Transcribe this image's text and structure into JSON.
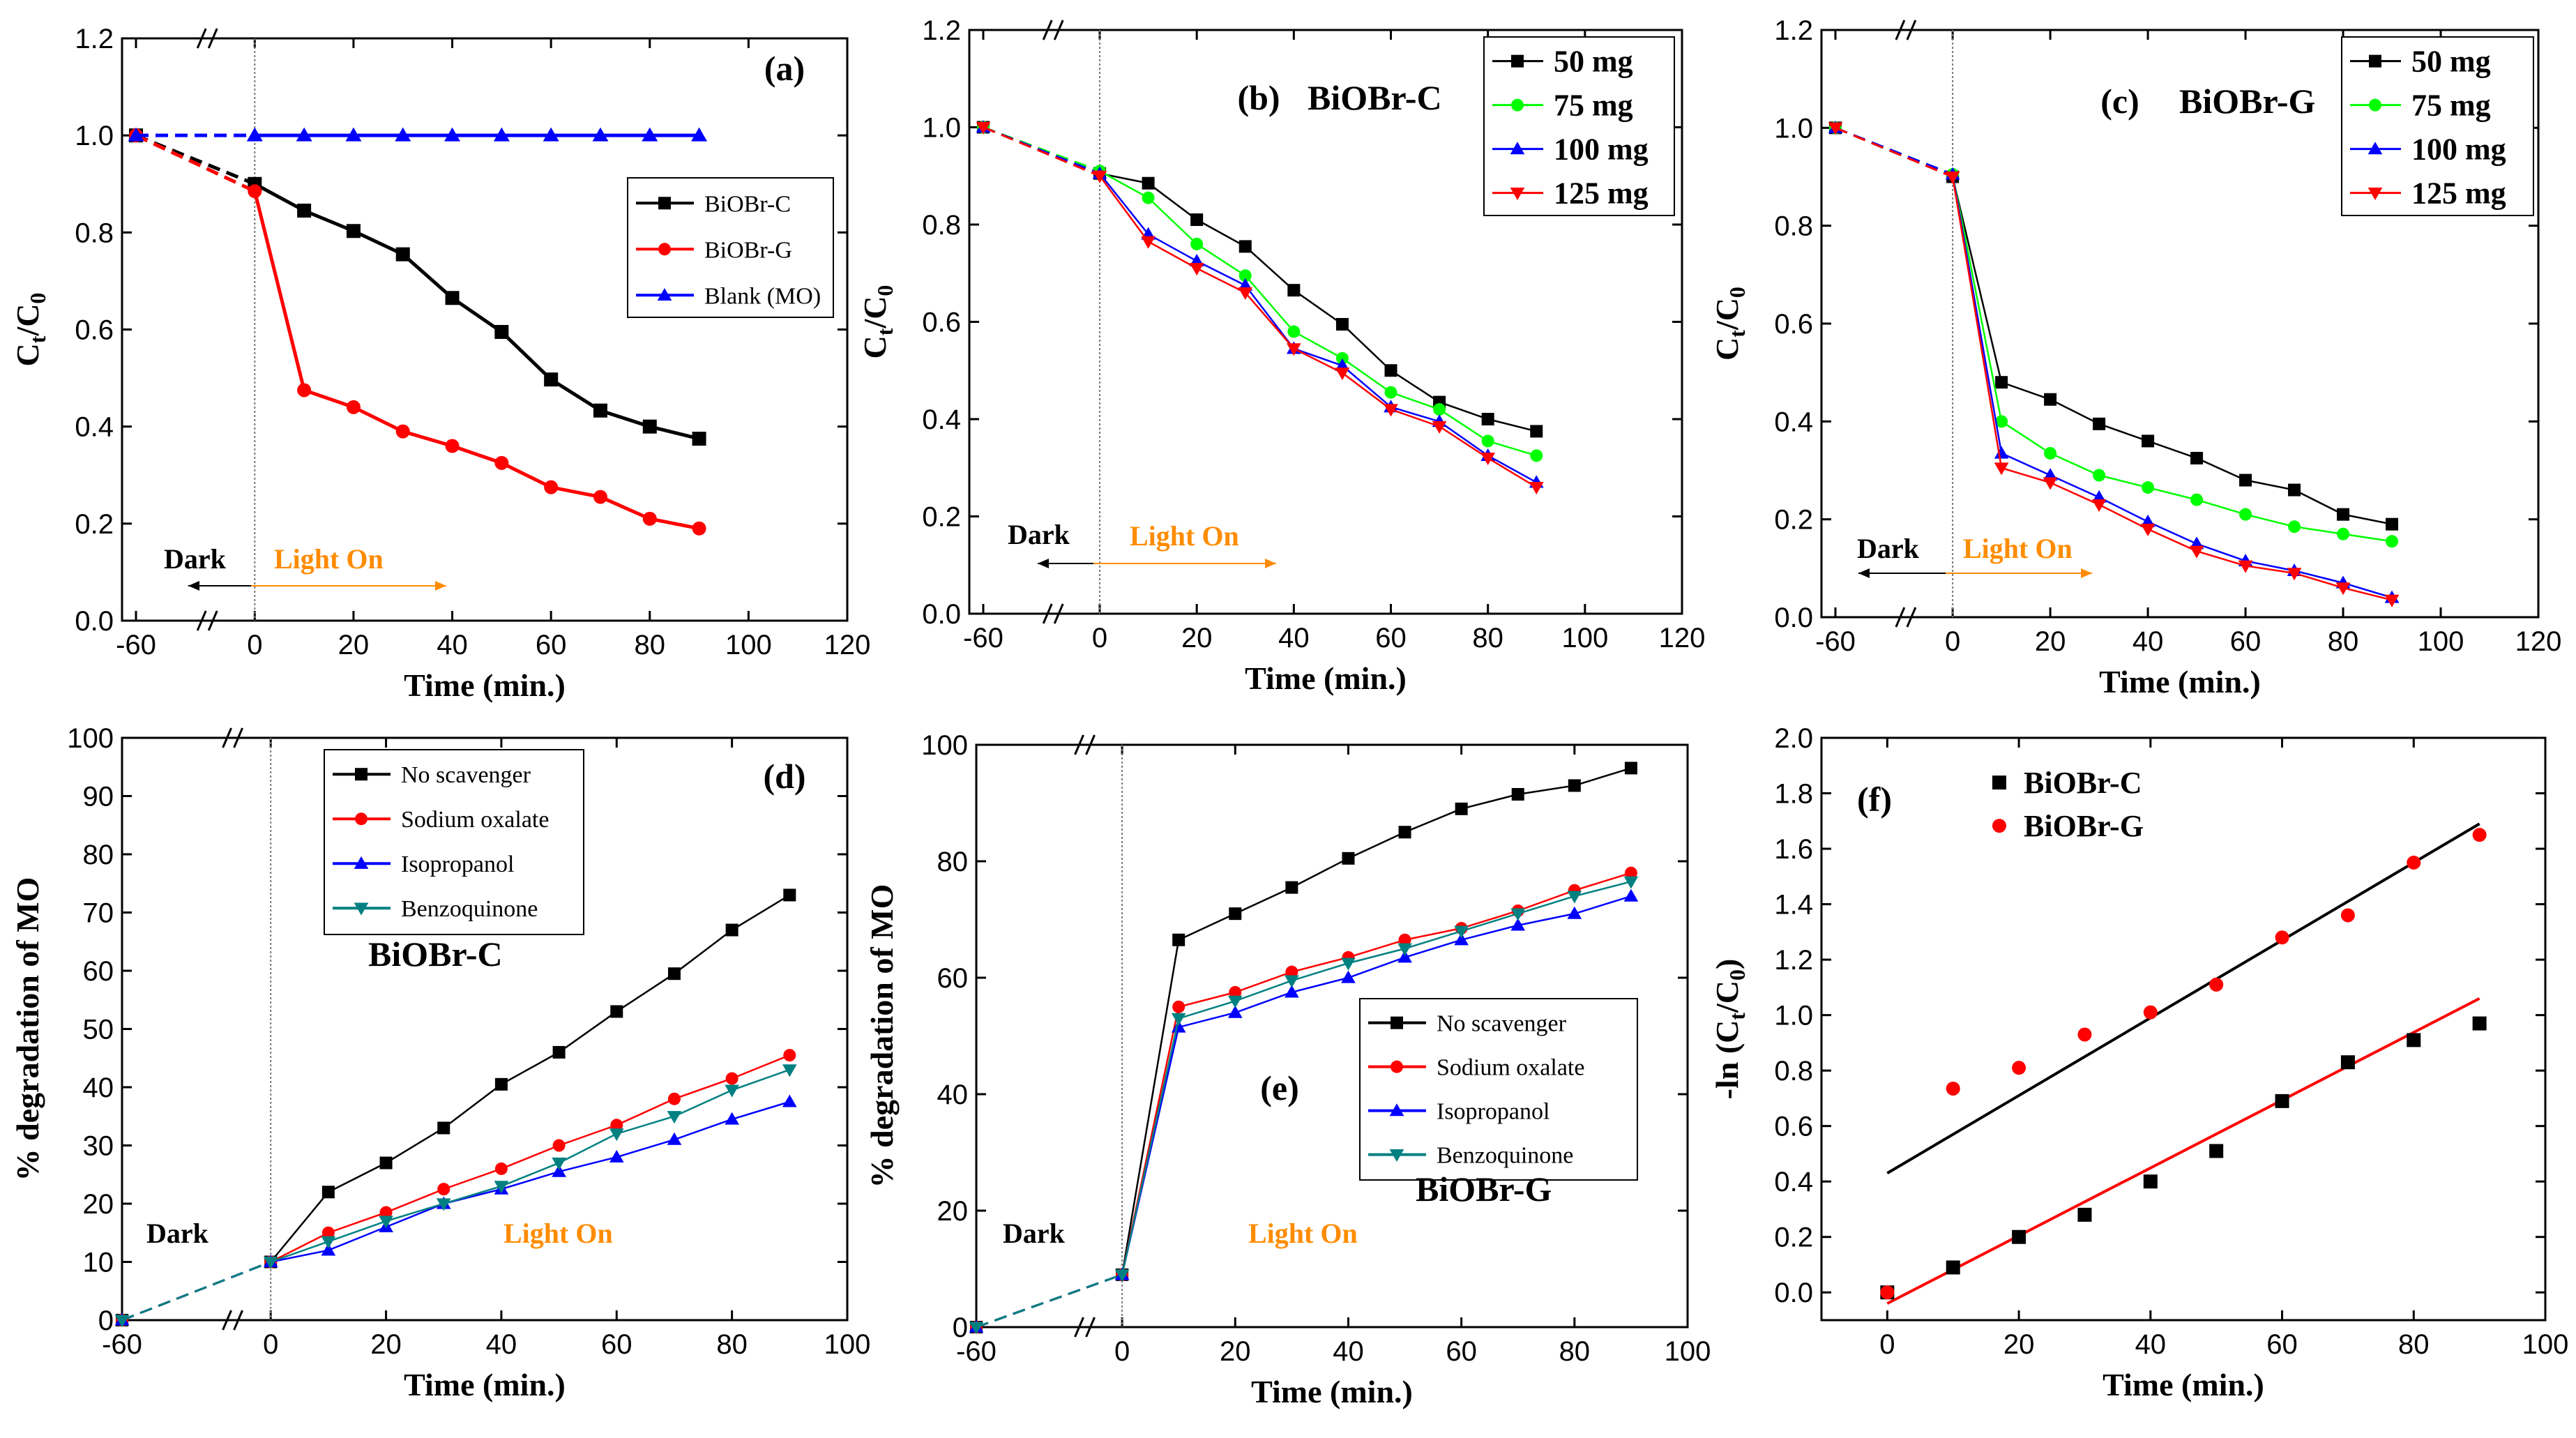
{
  "colors": {
    "black": "#000000",
    "red": "#ff0000",
    "blue": "#0000ff",
    "green": "#00ff00",
    "teal": "#008080",
    "orange": "#ff8c00"
  },
  "chart_data": [
    {
      "id": "a",
      "type": "line",
      "panel_label": "(a)",
      "xlabel": "Time (min.)",
      "ylabel_main": "C",
      "ylabel_sub1": "t",
      "ylabel_mid": "/C",
      "ylabel_sub2": "0",
      "xlim": [
        -60,
        120
      ],
      "ylim": [
        0,
        1.2
      ],
      "xticks": [
        -60,
        0,
        20,
        40,
        60,
        80,
        100,
        120
      ],
      "yticks": [
        0.0,
        0.2,
        0.4,
        0.6,
        0.8,
        1.0,
        1.2
      ],
      "ytick_labels": [
        "0.0",
        "0.2",
        "0.4",
        "0.6",
        "0.8",
        "1.0",
        "1.2"
      ],
      "legend_style": "small",
      "series": [
        {
          "name": "BiOBr-C",
          "color": "black",
          "marker": "square",
          "x": [
            -60,
            0,
            10,
            20,
            30,
            40,
            50,
            60,
            70,
            80,
            90
          ],
          "y": [
            1.0,
            0.9,
            0.845,
            0.803,
            0.755,
            0.665,
            0.595,
            0.497,
            0.433,
            0.4,
            0.375
          ]
        },
        {
          "name": "BiOBr-G",
          "color": "red",
          "marker": "circle",
          "x": [
            -60,
            0,
            10,
            20,
            30,
            40,
            50,
            60,
            70,
            80,
            90
          ],
          "y": [
            1.0,
            0.885,
            0.475,
            0.44,
            0.39,
            0.36,
            0.325,
            0.275,
            0.255,
            0.21,
            0.19
          ]
        },
        {
          "name": "Blank (MO)",
          "color": "blue",
          "marker": "triangle-up",
          "x": [
            -60,
            0,
            10,
            20,
            30,
            40,
            50,
            60,
            70,
            80,
            90
          ],
          "y": [
            1.0,
            1.0,
            1.0,
            1.0,
            1.0,
            1.0,
            1.0,
            1.0,
            1.0,
            1.0,
            1.0
          ]
        }
      ],
      "annotations": {
        "dark": "Dark",
        "light": "Light On"
      }
    },
    {
      "id": "b",
      "type": "line",
      "panel_label": "(b)",
      "title_in_plot": "BiOBr-C",
      "xlabel": "Time (min.)",
      "ylabel_main": "C",
      "ylabel_sub1": "t",
      "ylabel_mid": "/C",
      "ylabel_sub2": "0",
      "xlim": [
        -60,
        120
      ],
      "ylim": [
        0,
        1.2
      ],
      "xticks": [
        -60,
        0,
        20,
        40,
        60,
        80,
        100,
        120
      ],
      "yticks": [
        0.0,
        0.2,
        0.4,
        0.6,
        0.8,
        1.0,
        1.2
      ],
      "ytick_labels": [
        "0.0",
        "0.2",
        "0.4",
        "0.6",
        "0.8",
        "1.0",
        "1.2"
      ],
      "legend_style": "big",
      "series": [
        {
          "name": "50 mg",
          "color": "black",
          "marker": "square",
          "x": [
            -60,
            0,
            10,
            20,
            30,
            40,
            50,
            60,
            70,
            80,
            90
          ],
          "y": [
            1.0,
            0.905,
            0.885,
            0.81,
            0.755,
            0.665,
            0.595,
            0.5,
            0.435,
            0.4,
            0.375
          ]
        },
        {
          "name": "75 mg",
          "color": "green",
          "marker": "circle",
          "x": [
            -60,
            0,
            10,
            20,
            30,
            40,
            50,
            60,
            70,
            80,
            90
          ],
          "y": [
            1.0,
            0.91,
            0.855,
            0.76,
            0.695,
            0.58,
            0.525,
            0.455,
            0.42,
            0.355,
            0.325
          ]
        },
        {
          "name": "100 mg",
          "color": "blue",
          "marker": "triangle-up",
          "x": [
            -60,
            0,
            10,
            20,
            30,
            40,
            50,
            60,
            70,
            80,
            90
          ],
          "y": [
            1.0,
            0.905,
            0.78,
            0.725,
            0.675,
            0.545,
            0.51,
            0.425,
            0.395,
            0.325,
            0.27
          ]
        },
        {
          "name": "125 mg",
          "color": "red",
          "marker": "triangle-down",
          "x": [
            -60,
            0,
            10,
            20,
            30,
            40,
            50,
            60,
            70,
            80,
            90
          ],
          "y": [
            1.0,
            0.9,
            0.765,
            0.71,
            0.66,
            0.545,
            0.495,
            0.42,
            0.385,
            0.32,
            0.26
          ]
        }
      ],
      "annotations": {
        "dark": "Dark",
        "light": "Light On"
      }
    },
    {
      "id": "c",
      "type": "line",
      "panel_label": "(c)",
      "title_in_plot": "BiOBr-G",
      "xlabel": "Time (min.)",
      "ylabel_main": "C",
      "ylabel_sub1": "t",
      "ylabel_mid": "/C",
      "ylabel_sub2": "0",
      "xlim": [
        -60,
        120
      ],
      "ylim": [
        0,
        1.2
      ],
      "xticks": [
        -60,
        0,
        20,
        40,
        60,
        80,
        100,
        120
      ],
      "yticks": [
        0.0,
        0.2,
        0.4,
        0.6,
        0.8,
        1.0,
        1.2
      ],
      "ytick_labels": [
        "0.0",
        "0.2",
        "0.4",
        "0.6",
        "0.8",
        "1.0",
        "1.2"
      ],
      "legend_style": "big",
      "series": [
        {
          "name": "50 mg",
          "color": "black",
          "marker": "square",
          "x": [
            -60,
            0,
            10,
            20,
            30,
            40,
            50,
            60,
            70,
            80,
            90
          ],
          "y": [
            1.0,
            0.9,
            0.48,
            0.445,
            0.395,
            0.36,
            0.325,
            0.28,
            0.26,
            0.21,
            0.19
          ]
        },
        {
          "name": "75 mg",
          "color": "green",
          "marker": "circle",
          "x": [
            -60,
            0,
            10,
            20,
            30,
            40,
            50,
            60,
            70,
            80,
            90
          ],
          "y": [
            1.0,
            0.905,
            0.4,
            0.335,
            0.29,
            0.265,
            0.24,
            0.21,
            0.185,
            0.17,
            0.155
          ]
        },
        {
          "name": "100 mg",
          "color": "blue",
          "marker": "triangle-up",
          "x": [
            -60,
            0,
            10,
            20,
            30,
            40,
            50,
            60,
            70,
            80,
            90
          ],
          "y": [
            1.0,
            0.905,
            0.335,
            0.29,
            0.245,
            0.195,
            0.15,
            0.115,
            0.095,
            0.07,
            0.04
          ]
        },
        {
          "name": "125 mg",
          "color": "red",
          "marker": "triangle-down",
          "x": [
            -60,
            0,
            10,
            20,
            30,
            40,
            50,
            60,
            70,
            80,
            90
          ],
          "y": [
            1.0,
            0.9,
            0.305,
            0.275,
            0.23,
            0.18,
            0.135,
            0.105,
            0.09,
            0.06,
            0.035
          ]
        }
      ],
      "annotations": {
        "dark": "Dark",
        "light": "Light On"
      }
    },
    {
      "id": "d",
      "type": "line",
      "panel_label": "(d)",
      "title_in_plot": "BiOBr-C",
      "xlabel": "Time (min.)",
      "ylabel": "% degradation of MO",
      "xlim": [
        -60,
        100
      ],
      "ylim": [
        0,
        100
      ],
      "xticks": [
        -60,
        0,
        20,
        40,
        60,
        80,
        100
      ],
      "yticks": [
        0,
        10,
        20,
        30,
        40,
        50,
        60,
        70,
        80,
        90,
        100
      ],
      "ytick_labels": [
        "0",
        "10",
        "20",
        "30",
        "40",
        "50",
        "60",
        "70",
        "80",
        "90",
        "100"
      ],
      "legend_style": "small",
      "series": [
        {
          "name": "No scavenger",
          "color": "black",
          "marker": "square",
          "x": [
            -60,
            0,
            10,
            20,
            30,
            40,
            50,
            60,
            70,
            80,
            90
          ],
          "y": [
            0,
            10,
            22,
            27,
            33,
            40.5,
            46,
            53,
            59.5,
            67,
            73
          ]
        },
        {
          "name": "Sodium oxalate",
          "color": "red",
          "marker": "circle",
          "x": [
            -60,
            0,
            10,
            20,
            30,
            40,
            50,
            60,
            70,
            80,
            90
          ],
          "y": [
            0,
            10,
            15,
            18.5,
            22.5,
            26,
            30,
            33.5,
            38,
            41.5,
            45.5
          ]
        },
        {
          "name": "Isopropanol",
          "color": "blue",
          "marker": "triangle-up",
          "x": [
            -60,
            0,
            10,
            20,
            30,
            40,
            50,
            60,
            70,
            80,
            90
          ],
          "y": [
            0,
            10,
            12,
            16,
            20,
            22.5,
            25.5,
            28,
            31,
            34.5,
            37.5
          ]
        },
        {
          "name": "Benzoquinone",
          "color": "teal",
          "marker": "triangle-down",
          "x": [
            -60,
            0,
            10,
            20,
            30,
            40,
            50,
            60,
            70,
            80,
            90
          ],
          "y": [
            0,
            10,
            13.5,
            17,
            20,
            23,
            27,
            32,
            35,
            39.5,
            43
          ]
        }
      ],
      "annotations": {
        "dark": "Dark",
        "light": "Light On"
      }
    },
    {
      "id": "e",
      "type": "line",
      "panel_label": "(e)",
      "title_in_plot": "BiOBr-G",
      "xlabel": "Time (min.)",
      "ylabel": "% degradation of MO",
      "xlim": [
        -60,
        100
      ],
      "ylim": [
        0,
        100
      ],
      "xticks": [
        -60,
        0,
        20,
        40,
        60,
        80,
        100
      ],
      "yticks": [
        0,
        20,
        40,
        60,
        80,
        100
      ],
      "ytick_labels": [
        "0",
        "20",
        "40",
        "60",
        "80",
        "100"
      ],
      "legend_style": "small",
      "series": [
        {
          "name": "No scavenger",
          "color": "black",
          "marker": "square",
          "x": [
            -60,
            0,
            10,
            20,
            30,
            40,
            50,
            60,
            70,
            80,
            90
          ],
          "y": [
            0,
            9,
            66.5,
            71,
            75.5,
            80.5,
            85,
            89,
            91.5,
            93,
            96
          ]
        },
        {
          "name": "Sodium oxalate",
          "color": "red",
          "marker": "circle",
          "x": [
            -60,
            0,
            10,
            20,
            30,
            40,
            50,
            60,
            70,
            80,
            90
          ],
          "y": [
            0,
            9,
            55,
            57.5,
            61,
            63.5,
            66.5,
            68.5,
            71.5,
            75,
            78
          ]
        },
        {
          "name": "Isopropanol",
          "color": "blue",
          "marker": "triangle-up",
          "x": [
            -60,
            0,
            10,
            20,
            30,
            40,
            50,
            60,
            70,
            80,
            90
          ],
          "y": [
            0,
            9,
            51.5,
            54,
            57.5,
            60,
            63.5,
            66.5,
            69,
            71,
            74
          ]
        },
        {
          "name": "Benzoquinone",
          "color": "teal",
          "marker": "triangle-down",
          "x": [
            -60,
            0,
            10,
            20,
            30,
            40,
            50,
            60,
            70,
            80,
            90
          ],
          "y": [
            0,
            9,
            53,
            56,
            59.5,
            62.5,
            65,
            68,
            71,
            74,
            76.5
          ]
        }
      ],
      "annotations": {
        "dark": "Dark",
        "light": "Light On"
      }
    },
    {
      "id": "f",
      "type": "scatter",
      "panel_label": "(f)",
      "xlabel": "Time (min.)",
      "ylabel_main": "-ln (C",
      "ylabel_sub1": "t",
      "ylabel_mid": "/C",
      "ylabel_sub2": "0",
      "ylabel_end": ")",
      "xlim": [
        -10,
        100
      ],
      "ylim": [
        -0.1,
        2.0
      ],
      "xticks": [
        0,
        20,
        40,
        60,
        80,
        100
      ],
      "yticks": [
        0.0,
        0.2,
        0.4,
        0.6,
        0.8,
        1.0,
        1.2,
        1.4,
        1.6,
        1.8,
        2.0
      ],
      "ytick_labels": [
        "0.0",
        "0.2",
        "0.4",
        "0.6",
        "0.8",
        "1.0",
        "1.2",
        "1.4",
        "1.6",
        "1.8",
        "2.0"
      ],
      "legend_style": "big",
      "series": [
        {
          "name": "BiOBr-C",
          "color": "black",
          "marker": "square",
          "x": [
            0,
            10,
            20,
            30,
            40,
            50,
            60,
            70,
            80,
            90
          ],
          "y": [
            0.0,
            0.09,
            0.2,
            0.28,
            0.4,
            0.51,
            0.69,
            0.83,
            0.91,
            0.97
          ]
        },
        {
          "name": "BiOBr-G",
          "color": "red",
          "marker": "circle",
          "x": [
            0,
            10,
            20,
            30,
            40,
            50,
            60,
            70,
            80,
            90
          ],
          "y": [
            0.0,
            0.735,
            0.81,
            0.93,
            1.01,
            1.11,
            1.28,
            1.36,
            1.55,
            1.65
          ]
        }
      ],
      "fits": [
        {
          "color": "red",
          "x": [
            0,
            90
          ],
          "y": [
            -0.04,
            1.06
          ]
        },
        {
          "color": "black",
          "x": [
            0,
            90
          ],
          "y": [
            0.43,
            1.69
          ]
        }
      ]
    }
  ]
}
